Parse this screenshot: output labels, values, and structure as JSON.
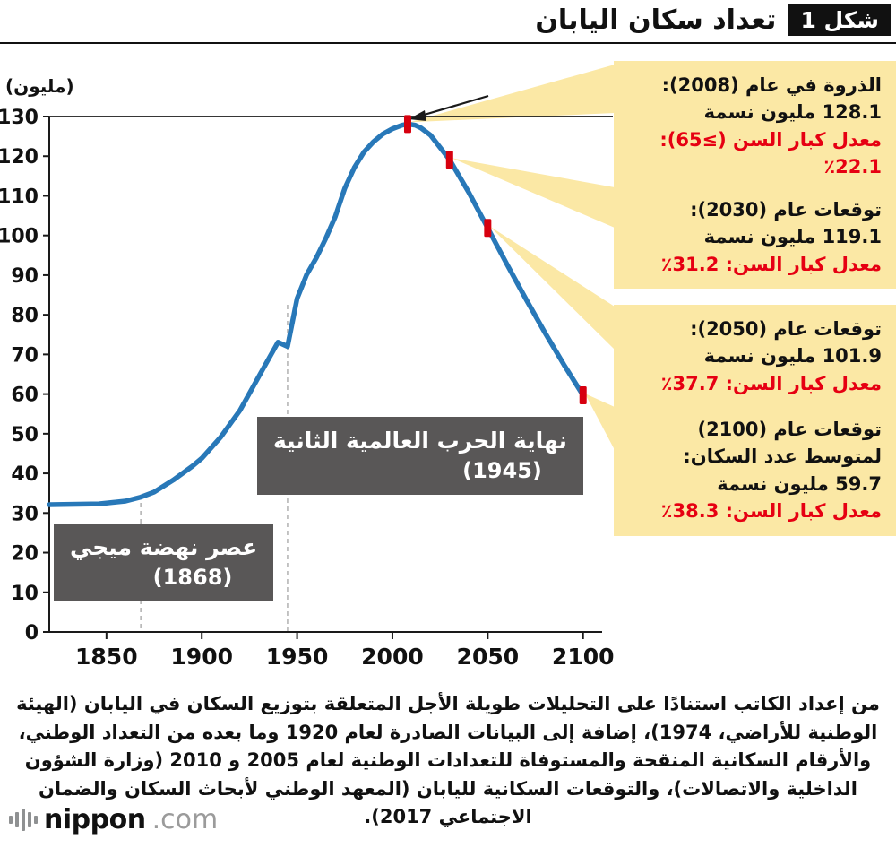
{
  "header": {
    "figure_badge": "شكل 1",
    "title": "تعداد سكان اليابان"
  },
  "chart_data": {
    "type": "line",
    "title": "تعداد سكان اليابان",
    "unit_label": "(مليون)",
    "xlim": [
      1820,
      2110
    ],
    "ylim": [
      0,
      130
    ],
    "x_ticks": [
      1850,
      1900,
      1950,
      2000,
      2050,
      2100
    ],
    "y_ticks": [
      0,
      10,
      20,
      30,
      40,
      50,
      60,
      70,
      80,
      90,
      100,
      110,
      120,
      130
    ],
    "grid": "top-line-only",
    "legend": "none",
    "line_color": "#2878b8",
    "marker_color": "#d7000f",
    "callout_bg": "#fbe8a5",
    "series": [
      {
        "name": "سكان اليابان (مليون نسمة)",
        "points": [
          [
            1820,
            32.1
          ],
          [
            1846,
            32.3
          ],
          [
            1860,
            33.0
          ],
          [
            1868,
            34.0
          ],
          [
            1875,
            35.3
          ],
          [
            1885,
            38.3
          ],
          [
            1895,
            41.8
          ],
          [
            1900,
            43.8
          ],
          [
            1910,
            49.2
          ],
          [
            1920,
            55.9
          ],
          [
            1930,
            64.5
          ],
          [
            1940,
            73.1
          ],
          [
            1945,
            72.0
          ],
          [
            1950,
            84.1
          ],
          [
            1955,
            90.1
          ],
          [
            1960,
            94.3
          ],
          [
            1965,
            99.2
          ],
          [
            1970,
            104.7
          ],
          [
            1975,
            111.9
          ],
          [
            1980,
            117.1
          ],
          [
            1985,
            121.0
          ],
          [
            1990,
            123.6
          ],
          [
            1995,
            125.6
          ],
          [
            2000,
            126.9
          ],
          [
            2005,
            127.8
          ],
          [
            2008,
            128.1
          ],
          [
            2012,
            127.8
          ],
          [
            2015,
            127.1
          ],
          [
            2020,
            125.3
          ],
          [
            2030,
            119.1
          ],
          [
            2040,
            110.9
          ],
          [
            2050,
            101.9
          ],
          [
            2060,
            92.8
          ],
          [
            2070,
            84.0
          ],
          [
            2080,
            75.5
          ],
          [
            2090,
            67.4
          ],
          [
            2100,
            59.7
          ]
        ]
      }
    ],
    "markers": [
      {
        "year": 2008,
        "value": 128.1,
        "label": "الذروة في عام 2008"
      },
      {
        "year": 2030,
        "value": 119.1,
        "label": "توقعات عام 2030"
      },
      {
        "year": 2050,
        "value": 101.9,
        "label": "توقعات عام 2050"
      },
      {
        "year": 2100,
        "value": 59.7,
        "label": "توقعات عام 2100"
      }
    ],
    "event_lines": [
      {
        "year": 1868
      },
      {
        "year": 1945
      }
    ]
  },
  "event_labels": [
    {
      "text": "نهاية الحرب العالمية الثانية",
      "year": "(1945)"
    },
    {
      "text": "عصر نهضة ميجي",
      "year": "(1868)"
    }
  ],
  "callouts": [
    {
      "title": "الذروة في عام (2008):",
      "value": "128.1 مليون نسمة",
      "aging": "معدل كبار السن (≥65): 22.1٪"
    },
    {
      "title": "توقعات عام (2030):",
      "value": "119.1 مليون نسمة",
      "aging": "معدل كبار السن: 31.2٪"
    },
    {
      "title": "توقعات عام (2050):",
      "value": "101.9 مليون نسمة",
      "aging": "معدل كبار السن: 37.7٪"
    },
    {
      "title": "توقعات عام (2100) لمتوسط عدد السكان:",
      "value": "59.7 مليون نسمة",
      "aging": "معدل كبار السن: 38.3٪"
    }
  ],
  "footnote": "من إعداد الكاتب استنادًا على التحليلات طويلة الأجل المتعلقة بتوزيع السكان في اليابان (الهيئة الوطنية للأراضي، 1974)، إضافة إلى البيانات الصادرة لعام 1920 وما بعده من التعداد الوطني، والأرقام السكانية المنقحة والمستوفاة للتعدادات الوطنية لعام 2005 و 2010 (وزارة الشؤون الداخلية والاتصالات)، والتوقعات السكانية لليابان (المعهد الوطني لأبحاث السكان والضمان الاجتماعي 2017).",
  "logo": {
    "name": "nippon",
    "domain": ".com"
  }
}
